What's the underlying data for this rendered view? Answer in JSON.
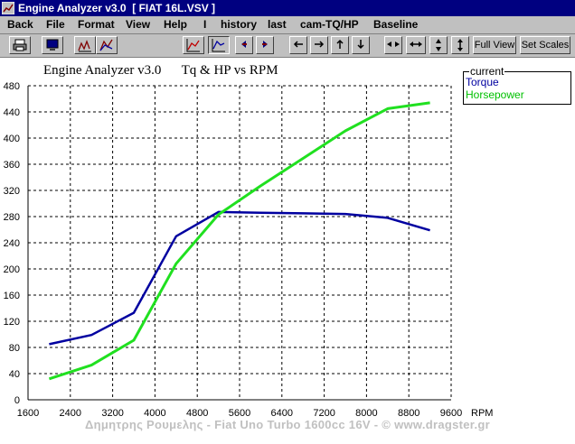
{
  "window": {
    "title": "Engine Analyzer v3.0  [ FIAT 16L.VSV ]"
  },
  "menu": [
    "Back",
    "File",
    "Format",
    "View",
    "Help",
    "I",
    "history",
    "last",
    "cam-TQ/HP",
    "Baseline"
  ],
  "toolbar": {
    "icons": [
      "print-icon",
      "monitor-icon",
      "curve-chart-icon",
      "mountain-chart-icon",
      "chart-toggle-icon",
      "chart-active-icon",
      "arrow-left-icon",
      "arrow-right-icon",
      "arrow-left-icon",
      "arrow-right-icon",
      "arrow-up-icon",
      "arrow-down-icon",
      "compress-horizontal-icon",
      "expand-horizontal-icon",
      "compress-vertical-icon",
      "expand-vertical-icon"
    ],
    "full_view": "Full View",
    "set_scales": "Set Scales"
  },
  "legend": {
    "title": "current",
    "torque": "Torque",
    "horsepower": "Horsepower"
  },
  "footer": "Δημητρης Ρουμελης - Fiat Uno Turbo 1600cc 16V  - © www.dragster.gr",
  "colors": {
    "torque": "#0000a0",
    "horsepower": "#20e020",
    "grid": "#000000",
    "window_title_bg": "#000080",
    "chrome": "#c0c0c0"
  },
  "chart_data": {
    "type": "line",
    "title": "Engine Analyzer v3.0      Tq & HP vs RPM",
    "xlabel": "RPM",
    "ylabel": "",
    "xlim": [
      1600,
      9600
    ],
    "ylim": [
      0,
      480
    ],
    "xticks": [
      1600,
      2400,
      3200,
      4000,
      4800,
      5600,
      6400,
      7200,
      8000,
      8800,
      9600
    ],
    "yticks": [
      0,
      40,
      80,
      120,
      160,
      200,
      240,
      280,
      320,
      360,
      400,
      440,
      480
    ],
    "grid": true,
    "legend_position": "top-right",
    "series": [
      {
        "name": "Torque",
        "color": "#0000a0",
        "x": [
          2000,
          2800,
          3600,
          4400,
          5200,
          6000,
          6800,
          7600,
          8400,
          9200
        ],
        "y": [
          85,
          99,
          133,
          250,
          287,
          286,
          285,
          284,
          278,
          259
        ]
      },
      {
        "name": "Horsepower",
        "color": "#20e020",
        "x": [
          2000,
          2800,
          3600,
          4400,
          5200,
          6000,
          6800,
          7600,
          8400,
          9200
        ],
        "y": [
          32,
          53,
          91,
          208,
          283,
          327,
          369,
          411,
          445,
          454
        ]
      }
    ]
  }
}
